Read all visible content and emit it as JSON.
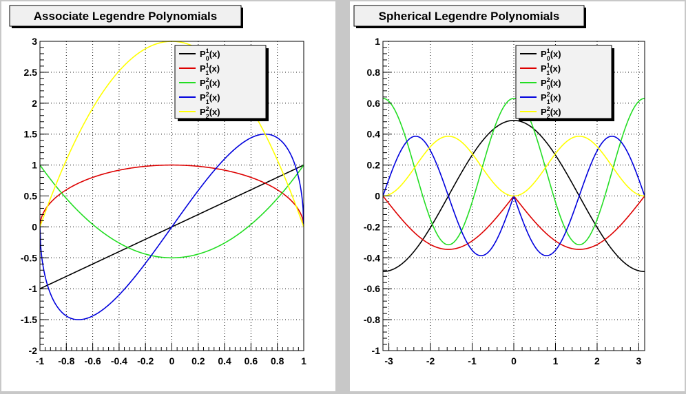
{
  "window": {
    "background": "#c8c8c8",
    "pad_background": "#ffffff",
    "divider_color": "#e4e4e4"
  },
  "chart_data": [
    {
      "type": "line",
      "title": "Associate Legendre Polynomials",
      "xlabel": "",
      "ylabel": "",
      "xlim": [
        -1,
        1
      ],
      "ylim": [
        -2,
        3
      ],
      "x_ticks": [
        -1,
        -0.8,
        -0.6,
        -0.4,
        -0.2,
        0,
        0.2,
        0.4,
        0.6,
        0.8,
        1
      ],
      "x_tick_labels": [
        "-1",
        "-0.8",
        "-0.6",
        "-0.4",
        "-0.2",
        "0",
        "0.2",
        "0.4",
        "0.6",
        "0.8",
        "1"
      ],
      "y_ticks": [
        -2,
        -1.5,
        -1,
        -0.5,
        0,
        0.5,
        1,
        1.5,
        2,
        2.5,
        3
      ],
      "y_tick_labels": [
        "-2",
        "-1.5",
        "-1",
        "-0.5",
        "0",
        "0.5",
        "1",
        "1.5",
        "2",
        "2.5",
        "3"
      ],
      "grid": true,
      "legend_position": "top-right",
      "series": [
        {
          "legend": {
            "base": "P",
            "sup": "1",
            "sub": "0",
            "tail": "(x)"
          },
          "color": "#000000",
          "formula": "x",
          "sample_x": [
            -1,
            -0.5,
            0,
            0.5,
            1
          ],
          "sample_y": [
            -1,
            -0.5,
            0,
            0.5,
            1
          ]
        },
        {
          "legend": {
            "base": "P",
            "sup": "1",
            "sub": "1",
            "tail": "(x)"
          },
          "color": "#dd0000",
          "formula": "sqrt(1-x^2)",
          "sample_x": [
            -1,
            -0.5,
            0,
            0.5,
            1
          ],
          "sample_y": [
            0,
            0.866,
            1,
            0.866,
            0
          ]
        },
        {
          "legend": {
            "base": "P",
            "sup": "2",
            "sub": "0",
            "tail": "(x)"
          },
          "color": "#22dd22",
          "formula": "(3x^2-1)/2",
          "sample_x": [
            -1,
            -0.5,
            0,
            0.5,
            1
          ],
          "sample_y": [
            1,
            -0.125,
            -0.5,
            -0.125,
            1
          ]
        },
        {
          "legend": {
            "base": "P",
            "sup": "2",
            "sub": "1",
            "tail": "(x)"
          },
          "color": "#0000dd",
          "formula": "3x*sqrt(1-x^2)",
          "sample_x": [
            -1,
            -0.707,
            0,
            0.707,
            1
          ],
          "sample_y": [
            0,
            -1.5,
            0,
            1.5,
            0
          ]
        },
        {
          "legend": {
            "base": "P",
            "sup": "2",
            "sub": "2",
            "tail": "(x)"
          },
          "color": "#ffff00",
          "formula": "3(1-x^2)",
          "sample_x": [
            -1,
            -0.5,
            0,
            0.5,
            1
          ],
          "sample_y": [
            0,
            2.25,
            3,
            2.25,
            0
          ]
        }
      ]
    },
    {
      "type": "line",
      "title": "Spherical Legendre Polynomials",
      "xlabel": "",
      "ylabel": "",
      "xlim": [
        -3.1416,
        3.1416
      ],
      "ylim": [
        -1,
        1
      ],
      "x_ticks": [
        -3,
        -2,
        -1,
        0,
        1,
        2,
        3
      ],
      "x_tick_labels": [
        "-3",
        "-2",
        "-1",
        "0",
        "1",
        "2",
        "3"
      ],
      "y_ticks": [
        -1,
        -0.8,
        -0.6,
        -0.4,
        -0.2,
        0,
        0.2,
        0.4,
        0.6,
        0.8,
        1
      ],
      "y_tick_labels": [
        "-1",
        "-0.8",
        "-0.6",
        "-0.4",
        "-0.2",
        "0",
        "0.2",
        "0.4",
        "0.6",
        "0.8",
        "1"
      ],
      "grid": true,
      "legend_position": "top-right",
      "series": [
        {
          "legend": {
            "base": "P",
            "sup": "1",
            "sub": "0",
            "tail": "(x)"
          },
          "color": "#000000",
          "formula": "0.4886*cos(x)",
          "sample_x": [
            -3.14,
            -1.57,
            0,
            1.57,
            3.14
          ],
          "sample_y": [
            -0.489,
            0,
            0.489,
            0,
            -0.489
          ]
        },
        {
          "legend": {
            "base": "P",
            "sup": "1",
            "sub": "1",
            "tail": "(x)"
          },
          "color": "#dd0000",
          "formula": "-0.3455*|sin(x)|",
          "sample_x": [
            -3.14,
            -1.57,
            0,
            1.57,
            3.14
          ],
          "sample_y": [
            0,
            -0.345,
            0,
            -0.345,
            0
          ]
        },
        {
          "legend": {
            "base": "P",
            "sup": "2",
            "sub": "0",
            "tail": "(x)"
          },
          "color": "#22dd22",
          "formula": "0.3154*(3cos^2(x)-1)",
          "sample_x": [
            -3.14,
            -1.57,
            0,
            1.57,
            3.14
          ],
          "sample_y": [
            0.631,
            -0.315,
            0.631,
            -0.315,
            0.631
          ]
        },
        {
          "legend": {
            "base": "P",
            "sup": "2",
            "sub": "1",
            "tail": "(x)"
          },
          "color": "#0000dd",
          "formula": "-0.7725*|sin(x)|*cos(x)",
          "sample_x": [
            -2.356,
            -0.785,
            0,
            0.785,
            2.356
          ],
          "sample_y": [
            0.386,
            -0.386,
            0,
            -0.386,
            0.386
          ]
        },
        {
          "legend": {
            "base": "P",
            "sup": "2",
            "sub": "2",
            "tail": "(x)"
          },
          "color": "#ffff00",
          "formula": "0.3863*sin^2(x)",
          "sample_x": [
            -3.14,
            -1.57,
            0,
            1.57,
            3.14
          ],
          "sample_y": [
            0,
            0.386,
            0,
            0.386,
            0
          ]
        }
      ]
    }
  ]
}
